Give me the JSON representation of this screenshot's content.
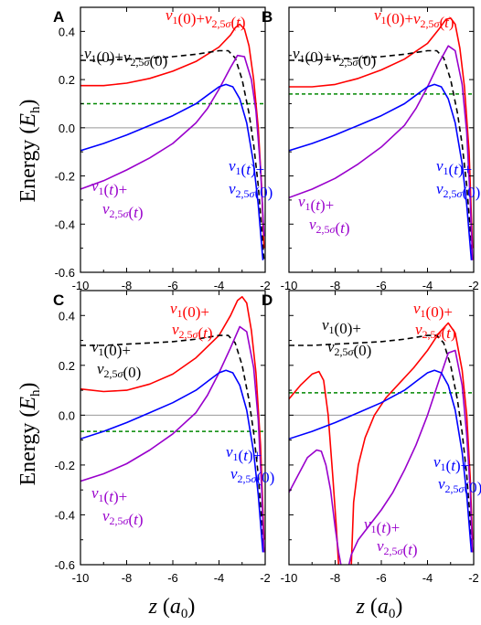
{
  "chart_data": [
    {
      "panel": "A",
      "type": "line",
      "xlim": [
        -10,
        -2
      ],
      "ylim": [
        -0.6,
        0.5
      ],
      "xticks": [
        "-10",
        "-8",
        "-6",
        "-4",
        "-2"
      ],
      "yticks": [
        "-0.6",
        "-0.4",
        "-0.2",
        "0.0",
        "0.2",
        "0.4"
      ],
      "hline_gray": 0,
      "hline_green": 0.1,
      "series": [
        {
          "name": "v1(0)+v2,5σ(t)",
          "color": "#ff0000",
          "dash": "solid",
          "x": [
            -10,
            -9,
            -8,
            -7,
            -6,
            -5,
            -4,
            -3.5,
            -3.3,
            -3.1,
            -2.9,
            -2.7,
            -2.5,
            -2.3,
            -2.15,
            -2.05
          ],
          "y": [
            0.175,
            0.175,
            0.185,
            0.205,
            0.235,
            0.275,
            0.335,
            0.385,
            0.415,
            0.43,
            0.41,
            0.34,
            0.2,
            0.0,
            -0.25,
            -0.5
          ]
        },
        {
          "name": "v1(0)+v2,5σ(0)",
          "color": "#000000",
          "dash": "6,4",
          "x": [
            -10,
            -9,
            -8,
            -7,
            -6,
            -5,
            -4,
            -3.6,
            -3.3,
            -3.0,
            -2.7,
            -2.5,
            -2.3,
            -2.15,
            -2.05
          ],
          "y": [
            0.28,
            0.28,
            0.285,
            0.29,
            0.295,
            0.305,
            0.32,
            0.32,
            0.29,
            0.2,
            0.06,
            -0.07,
            -0.24,
            -0.42,
            -0.55
          ]
        },
        {
          "name": "v1(t)+v2,5σ(t)",
          "color": "#9900cc",
          "dash": "solid",
          "x": [
            -10,
            -9,
            -8,
            -7,
            -6,
            -5,
            -4.5,
            -4,
            -3.5,
            -3.2,
            -2.9,
            -2.6,
            -2.4,
            -2.2,
            -2.05
          ],
          "y": [
            -0.255,
            -0.22,
            -0.175,
            -0.125,
            -0.065,
            0.02,
            0.08,
            0.16,
            0.25,
            0.3,
            0.295,
            0.2,
            0.07,
            -0.17,
            -0.45
          ]
        },
        {
          "name": "v1(t)+v2,5σ(0)",
          "color": "#0000ff",
          "dash": "solid",
          "x": [
            -10,
            -9,
            -8,
            -7,
            -6,
            -5,
            -4.5,
            -4,
            -3.7,
            -3.4,
            -3.1,
            -2.8,
            -2.5,
            -2.3,
            -2.1
          ],
          "y": [
            -0.095,
            -0.065,
            -0.03,
            0.01,
            0.05,
            0.1,
            0.135,
            0.17,
            0.18,
            0.17,
            0.12,
            0.02,
            -0.15,
            -0.32,
            -0.55
          ]
        }
      ],
      "labels": {
        "red": [
          "v1(0)+v2,5σ(t)"
        ],
        "black": [
          "v1(0)+v2,5σ(0)"
        ],
        "blue": [
          "v1(t)+",
          "v2,5σ(0)"
        ],
        "purple": [
          "v1(t)+",
          "v2,5σ(t)"
        ]
      }
    },
    {
      "panel": "B",
      "type": "line",
      "xlim": [
        -10,
        -2
      ],
      "ylim": [
        -0.6,
        0.5
      ],
      "xticks": [
        "-10",
        "-8",
        "-6",
        "-4",
        "-2"
      ],
      "yticks": [
        "-0.6",
        "-0.4",
        "-0.2",
        "0.0",
        "0.2",
        "0.4"
      ],
      "hline_gray": 0,
      "hline_green": 0.14,
      "series": [
        {
          "name": "v1(0)+v2,5σ(t)",
          "color": "#ff0000",
          "dash": "solid",
          "x": [
            -10,
            -9,
            -8,
            -7,
            -6,
            -5,
            -4,
            -3.5,
            -3.2,
            -3.0,
            -2.8,
            -2.6,
            -2.4,
            -2.2,
            -2.05
          ],
          "y": [
            0.17,
            0.17,
            0.18,
            0.205,
            0.24,
            0.285,
            0.35,
            0.41,
            0.45,
            0.455,
            0.43,
            0.33,
            0.17,
            -0.1,
            -0.5
          ]
        },
        {
          "name": "v1(0)+v2,5σ(0)",
          "color": "#000000",
          "dash": "6,4",
          "x": [
            -10,
            -9,
            -8,
            -7,
            -6,
            -5,
            -4,
            -3.6,
            -3.3,
            -3.0,
            -2.7,
            -2.5,
            -2.3,
            -2.15,
            -2.05
          ],
          "y": [
            0.28,
            0.28,
            0.285,
            0.29,
            0.295,
            0.305,
            0.32,
            0.32,
            0.29,
            0.2,
            0.06,
            -0.07,
            -0.24,
            -0.42,
            -0.55
          ]
        },
        {
          "name": "v1(t)+v2,5σ(t)",
          "color": "#9900cc",
          "dash": "solid",
          "x": [
            -10,
            -9,
            -8,
            -7,
            -6,
            -5,
            -4.5,
            -4,
            -3.5,
            -3.1,
            -2.8,
            -2.5,
            -2.3,
            -2.15,
            -2.05
          ],
          "y": [
            -0.29,
            -0.255,
            -0.21,
            -0.15,
            -0.08,
            0.01,
            0.08,
            0.17,
            0.27,
            0.34,
            0.32,
            0.18,
            -0.02,
            -0.3,
            -0.55
          ]
        },
        {
          "name": "v1(t)+v2,5σ(0)",
          "color": "#0000ff",
          "dash": "solid",
          "x": [
            -10,
            -9,
            -8,
            -7,
            -6,
            -5,
            -4.5,
            -4,
            -3.7,
            -3.4,
            -3.1,
            -2.8,
            -2.5,
            -2.3,
            -2.1
          ],
          "y": [
            -0.095,
            -0.065,
            -0.03,
            0.01,
            0.05,
            0.1,
            0.135,
            0.17,
            0.18,
            0.17,
            0.12,
            0.02,
            -0.15,
            -0.32,
            -0.55
          ]
        }
      ],
      "labels": {
        "red": [
          "v1(0)+v2,5σ(t)"
        ],
        "black": [
          "v1(0)+v2,5σ(0)"
        ],
        "blue": [
          "v1(t)+",
          "v2,5σ(0)"
        ],
        "purple": [
          "v1(t)+",
          "v2,5σ(t)"
        ]
      }
    },
    {
      "panel": "C",
      "type": "line",
      "xlim": [
        -10,
        -2
      ],
      "ylim": [
        -0.6,
        0.5
      ],
      "xticks": [
        "-10",
        "-8",
        "-6",
        "-4",
        "-2"
      ],
      "yticks": [
        "-0.6",
        "-0.4",
        "-0.2",
        "0.0",
        "0.2",
        "0.4"
      ],
      "hline_gray": 0,
      "hline_green": -0.065,
      "series": [
        {
          "name": "v1(0)+v2,5σ(t)",
          "color": "#ff0000",
          "dash": "solid",
          "x": [
            -10,
            -9,
            -8,
            -7,
            -6,
            -5,
            -4,
            -3.5,
            -3.2,
            -3.0,
            -2.8,
            -2.6,
            -2.4,
            -2.2,
            -2.05
          ],
          "y": [
            0.105,
            0.095,
            0.1,
            0.125,
            0.165,
            0.23,
            0.32,
            0.4,
            0.46,
            0.475,
            0.45,
            0.34,
            0.17,
            -0.12,
            -0.5
          ]
        },
        {
          "name": "v1(0)+v2,5σ(0)",
          "color": "#000000",
          "dash": "6,4",
          "x": [
            -10,
            -9,
            -8,
            -7,
            -6,
            -5,
            -4,
            -3.6,
            -3.3,
            -3.0,
            -2.7,
            -2.5,
            -2.3,
            -2.15,
            -2.05
          ],
          "y": [
            0.28,
            0.28,
            0.285,
            0.29,
            0.295,
            0.305,
            0.32,
            0.32,
            0.29,
            0.2,
            0.06,
            -0.07,
            -0.24,
            -0.42,
            -0.55
          ]
        },
        {
          "name": "v1(t)+v2,5σ(t)",
          "color": "#9900cc",
          "dash": "solid",
          "x": [
            -10,
            -9,
            -8,
            -7,
            -6,
            -5,
            -4.5,
            -4,
            -3.5,
            -3.1,
            -2.8,
            -2.5,
            -2.3,
            -2.15,
            -2.05
          ],
          "y": [
            -0.265,
            -0.235,
            -0.195,
            -0.14,
            -0.075,
            0.01,
            0.08,
            0.17,
            0.27,
            0.355,
            0.335,
            0.19,
            -0.02,
            -0.3,
            -0.55
          ]
        },
        {
          "name": "v1(t)+v2,5σ(0)",
          "color": "#0000ff",
          "dash": "solid",
          "x": [
            -10,
            -9,
            -8,
            -7,
            -6,
            -5,
            -4.5,
            -4,
            -3.7,
            -3.4,
            -3.1,
            -2.8,
            -2.5,
            -2.3,
            -2.1
          ],
          "y": [
            -0.095,
            -0.065,
            -0.03,
            0.01,
            0.05,
            0.1,
            0.135,
            0.17,
            0.18,
            0.17,
            0.12,
            0.02,
            -0.15,
            -0.32,
            -0.55
          ]
        }
      ],
      "labels": {
        "red": [
          "v1(0)+",
          "v2,5σ(t)"
        ],
        "black": [
          "v1(0)+",
          "v2,5σ(0)"
        ],
        "blue": [
          "v1(t)+",
          "v2,5σ(0)"
        ],
        "purple": [
          "v1(t)+",
          "v2,5σ(t)"
        ]
      }
    },
    {
      "panel": "D",
      "type": "line",
      "xlim": [
        -10,
        -2
      ],
      "ylim": [
        -0.6,
        0.5
      ],
      "xticks": [
        "-10",
        "-8",
        "-6",
        "-4",
        "-2"
      ],
      "yticks": [
        "-0.6",
        "-0.4",
        "-0.2",
        "0.0",
        "0.2",
        "0.4"
      ],
      "hline_gray": 0,
      "hline_green": 0.09,
      "series": [
        {
          "name": "v1(0)+v2,5σ(t) left branch",
          "color": "#ff0000",
          "dash": "solid",
          "x": [
            -10,
            -9.5,
            -9,
            -8.7,
            -8.5,
            -8.3,
            -8.1,
            -7.95,
            -7.85
          ],
          "y": [
            0.065,
            0.12,
            0.165,
            0.175,
            0.14,
            0.0,
            -0.25,
            -0.45,
            -0.6
          ]
        },
        {
          "name": "v1(0)+v2,5σ(t) right branch",
          "color": "#ff0000",
          "dash": "solid",
          "x": [
            -7.3,
            -7.2,
            -7.0,
            -6.7,
            -6.3,
            -5.8,
            -5.2,
            -4.6,
            -4.0,
            -3.5,
            -3.1,
            -2.8,
            -2.5,
            -2.3,
            -2.15,
            -2.05
          ],
          "y": [
            -0.6,
            -0.35,
            -0.2,
            -0.09,
            0.0,
            0.07,
            0.13,
            0.19,
            0.26,
            0.33,
            0.37,
            0.33,
            0.18,
            0.0,
            -0.25,
            -0.5
          ]
        },
        {
          "name": "v1(0)+v2,5σ(0)",
          "color": "#000000",
          "dash": "6,4",
          "x": [
            -10,
            -9,
            -8,
            -7,
            -6,
            -5,
            -4,
            -3.6,
            -3.3,
            -3.0,
            -2.7,
            -2.5,
            -2.3,
            -2.15,
            -2.05
          ],
          "y": [
            0.28,
            0.28,
            0.285,
            0.29,
            0.295,
            0.305,
            0.32,
            0.32,
            0.29,
            0.2,
            0.06,
            -0.07,
            -0.24,
            -0.42,
            -0.55
          ]
        },
        {
          "name": "v1(t)+v2,5σ(t) left branch",
          "color": "#9900cc",
          "dash": "solid",
          "x": [
            -10,
            -9.6,
            -9.2,
            -8.8,
            -8.6,
            -8.4,
            -8.2,
            -8.0,
            -7.85,
            -7.75
          ],
          "y": [
            -0.31,
            -0.24,
            -0.17,
            -0.14,
            -0.145,
            -0.2,
            -0.3,
            -0.45,
            -0.55,
            -0.6
          ]
        },
        {
          "name": "v1(t)+v2,5σ(t) right branch",
          "color": "#9900cc",
          "dash": "solid",
          "x": [
            -7.4,
            -7.3,
            -7.0,
            -6.5,
            -6.0,
            -5.5,
            -5.0,
            -4.5,
            -4.0,
            -3.5,
            -3.1,
            -2.8,
            -2.5,
            -2.3,
            -2.15,
            -2.05
          ],
          "y": [
            -0.6,
            -0.56,
            -0.5,
            -0.44,
            -0.38,
            -0.31,
            -0.22,
            -0.12,
            0.0,
            0.14,
            0.25,
            0.26,
            0.12,
            -0.08,
            -0.3,
            -0.55
          ]
        },
        {
          "name": "v1(t)+v2,5σ(0)",
          "color": "#0000ff",
          "dash": "solid",
          "x": [
            -10,
            -9,
            -8,
            -7,
            -6,
            -5,
            -4.5,
            -4,
            -3.7,
            -3.4,
            -3.1,
            -2.8,
            -2.5,
            -2.3,
            -2.1
          ],
          "y": [
            -0.095,
            -0.065,
            -0.03,
            0.01,
            0.05,
            0.1,
            0.135,
            0.17,
            0.18,
            0.17,
            0.12,
            0.02,
            -0.15,
            -0.32,
            -0.55
          ]
        }
      ],
      "labels": {
        "red": [
          "v1(0)+",
          "v2,5σ(t)"
        ],
        "black": [
          "v1(0)+",
          "v2,5σ(0)"
        ],
        "blue": [
          "v1(t)+",
          "v2,5σ(0)"
        ],
        "purple": [
          "v1(t)+",
          "v2,5σ(t)"
        ]
      }
    }
  ],
  "axis_text": {
    "ylabel_top": "Energy (Eh)",
    "ylabel_bottom": "Energy (Eh)",
    "xlabel_left": "z (a0)",
    "xlabel_right": "z (a0)"
  },
  "colors": {
    "red": "#ff0000",
    "black": "#000000",
    "blue": "#0000ff",
    "purple": "#9900cc",
    "green": "#008800",
    "zero": "#999999"
  }
}
